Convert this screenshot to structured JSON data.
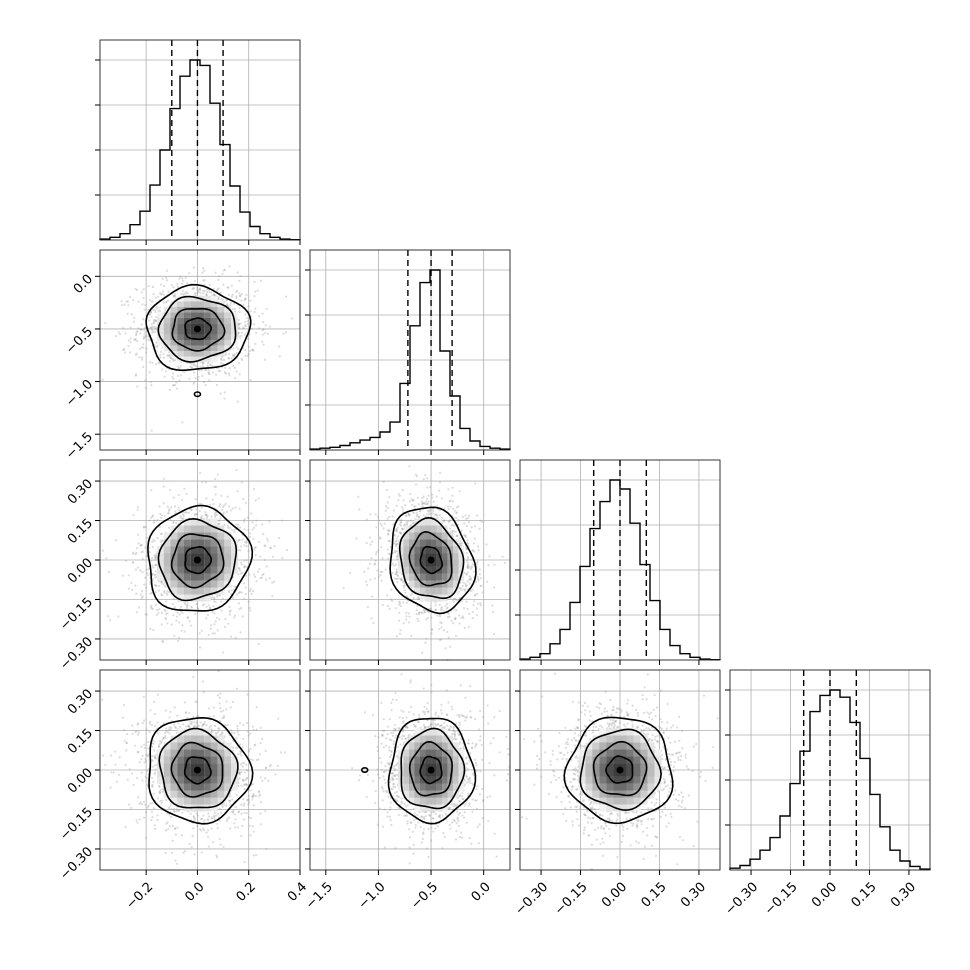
{
  "chart_data": {
    "type": "corner",
    "grid": true,
    "hist_bins": 20,
    "contour_levels": [
      0.118,
      0.393,
      0.675,
      0.864
    ],
    "colors": {
      "line": "#000000",
      "points": "#9a9a9a",
      "density_max": "#3c3c3c",
      "grid": "#b0b0b0"
    },
    "parameters": [
      {
        "index": 0,
        "range": [
          -0.38,
          0.4
        ],
        "ticks": [
          -0.2,
          0.0,
          0.2,
          0.4
        ],
        "tick_labels": [
          "−0.2",
          "0.0",
          "0.2",
          "0.4"
        ],
        "mean": 0.0,
        "std": 0.1,
        "quantiles": [
          -0.1,
          0.0,
          0.1
        ],
        "hist_heights": [
          0.005,
          0.015,
          0.035,
          0.085,
          0.16,
          0.305,
          0.5,
          0.73,
          0.91,
          1.0,
          0.97,
          0.76,
          0.53,
          0.3,
          0.155,
          0.075,
          0.035,
          0.015,
          0.005,
          0.002
        ]
      },
      {
        "index": 1,
        "range": [
          -1.65,
          0.25
        ],
        "ticks": [
          -1.5,
          -1.0,
          -0.5,
          0.0
        ],
        "tick_labels": [
          "−1.5",
          "−1.0",
          "−0.5",
          "0.0"
        ],
        "mean": -0.5,
        "std": 0.2,
        "quantiles": [
          -0.72,
          -0.5,
          -0.3
        ],
        "hist_heights": [
          0.005,
          0.01,
          0.015,
          0.025,
          0.04,
          0.055,
          0.07,
          0.1,
          0.155,
          0.37,
          0.69,
          0.93,
          1.0,
          0.55,
          0.3,
          0.12,
          0.05,
          0.02,
          0.01,
          0.005
        ]
      },
      {
        "index": 2,
        "range": [
          -0.38,
          0.38
        ],
        "ticks": [
          -0.3,
          -0.15,
          0.0,
          0.15,
          0.3
        ],
        "tick_labels": [
          "−0.30",
          "−0.15",
          "0.00",
          "0.15",
          "0.30"
        ],
        "mean": 0.0,
        "std": 0.1,
        "quantiles": [
          -0.1,
          0.0,
          0.1
        ],
        "hist_heights": [
          0.005,
          0.015,
          0.035,
          0.09,
          0.17,
          0.32,
          0.52,
          0.73,
          0.88,
          1.0,
          0.95,
          0.76,
          0.53,
          0.33,
          0.17,
          0.08,
          0.035,
          0.015,
          0.005,
          0.002
        ]
      },
      {
        "index": 3,
        "range": [
          -0.38,
          0.38
        ],
        "ticks": [
          -0.3,
          -0.15,
          0.0,
          0.15,
          0.3
        ],
        "tick_labels": [
          "−0.30",
          "−0.15",
          "0.00",
          "0.15",
          "0.30"
        ],
        "mean": 0.0,
        "std": 0.1,
        "quantiles": [
          -0.1,
          0.0,
          0.1
        ],
        "hist_heights": [
          0.01,
          0.025,
          0.06,
          0.11,
          0.18,
          0.3,
          0.48,
          0.66,
          0.88,
          0.97,
          1.0,
          0.96,
          0.82,
          0.62,
          0.42,
          0.24,
          0.11,
          0.05,
          0.02,
          0.005
        ]
      }
    ],
    "correlations": [
      {
        "i": 1,
        "j": 0,
        "rho": 0.0
      },
      {
        "i": 2,
        "j": 0,
        "rho": 0.05
      },
      {
        "i": 2,
        "j": 1,
        "rho": -0.15
      },
      {
        "i": 3,
        "j": 0,
        "rho": -0.05
      },
      {
        "i": 3,
        "j": 1,
        "rho": 0.0
      },
      {
        "i": 3,
        "j": 2,
        "rho": 0.0
      }
    ],
    "outlier_blobs": [
      {
        "i": 1,
        "j": 0,
        "x": 0.0,
        "y": -1.12
      },
      {
        "i": 3,
        "j": 1,
        "x": -1.13,
        "y": 0.0
      }
    ]
  }
}
